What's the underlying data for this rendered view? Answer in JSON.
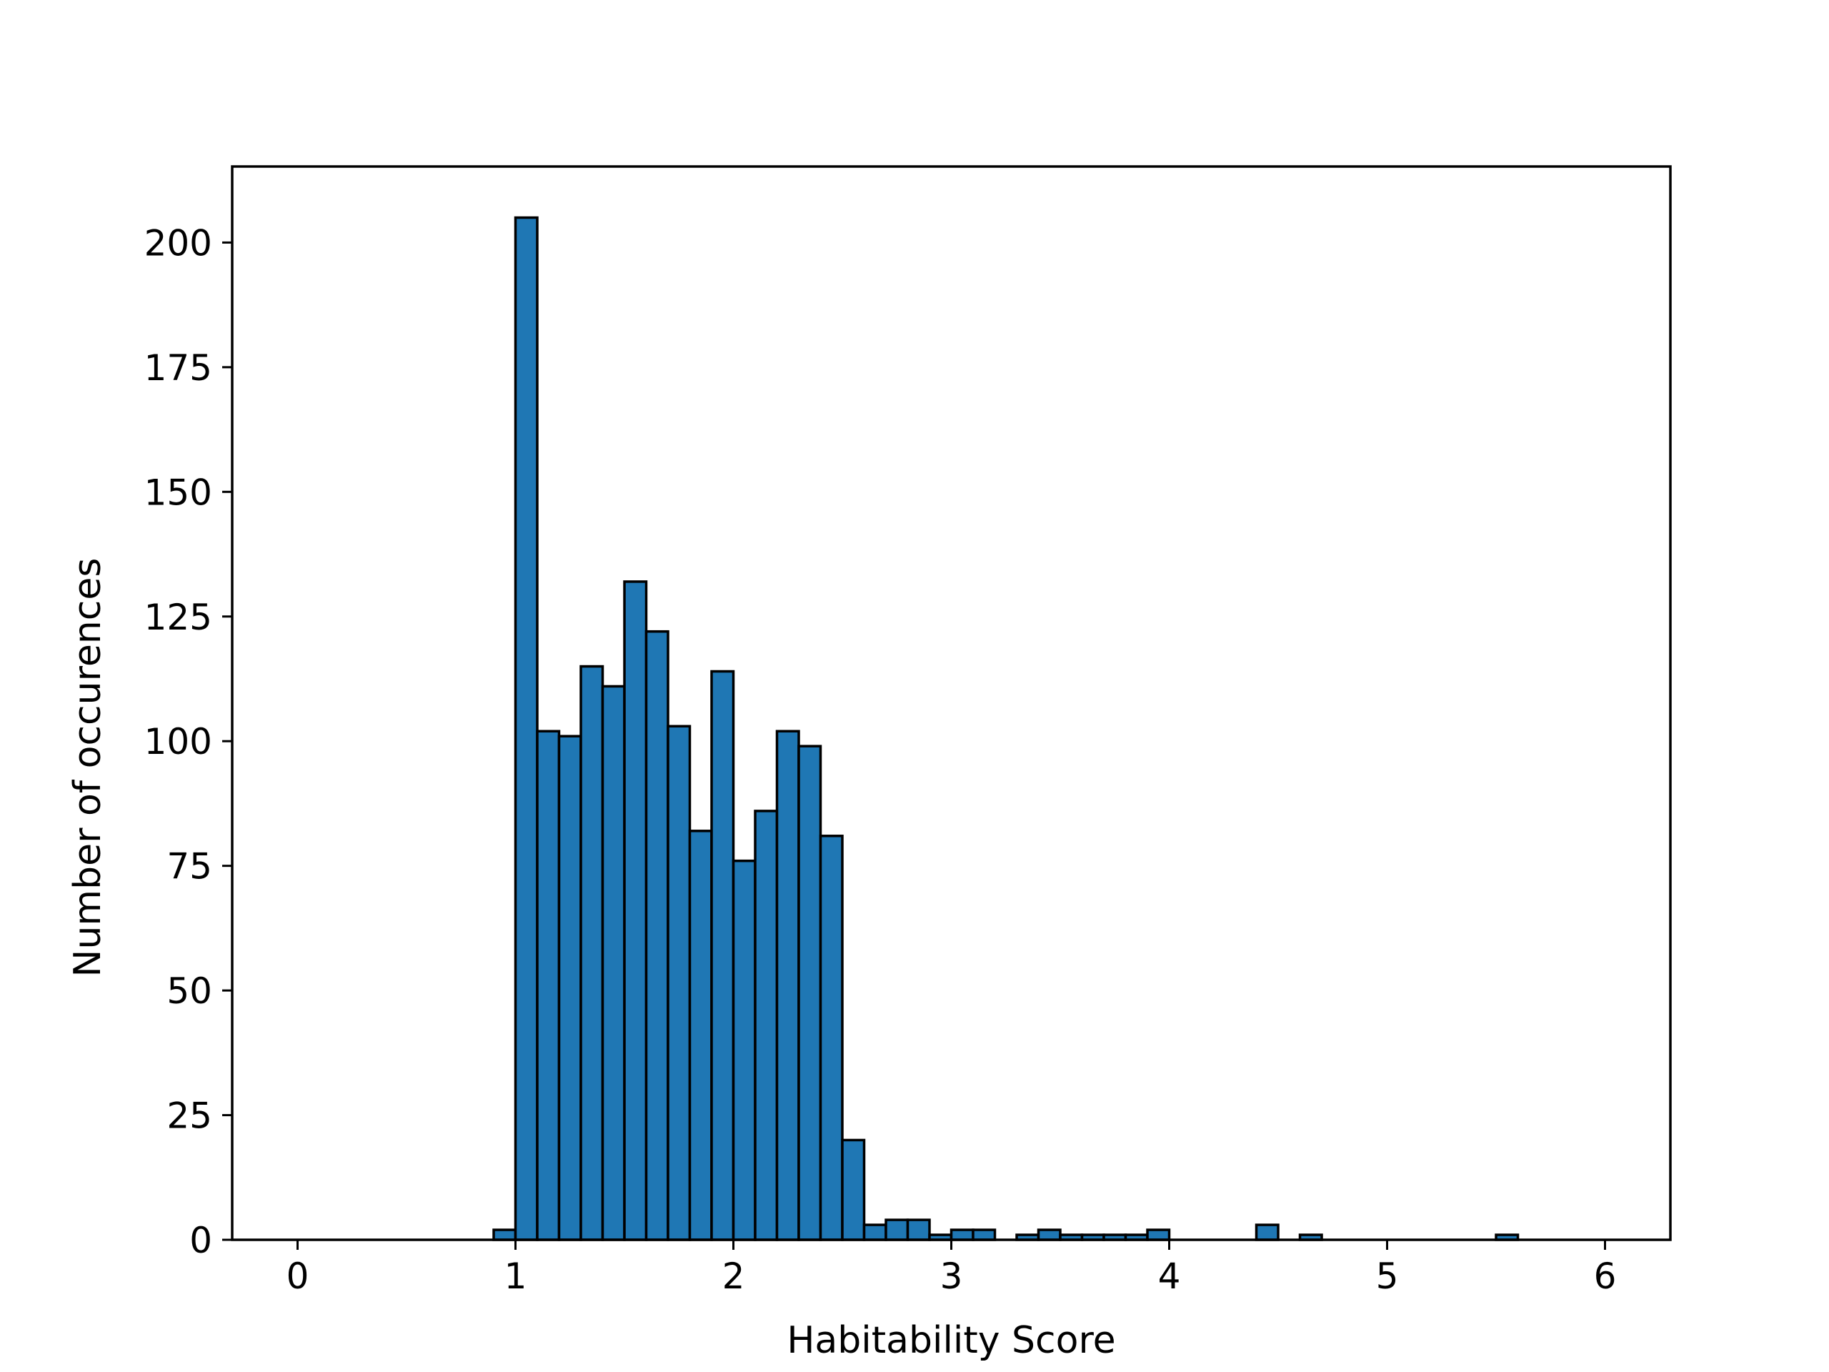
{
  "chart_data": {
    "type": "bar",
    "subtype": "histogram",
    "title": "",
    "xlabel": "Habitability Score",
    "ylabel": "Number of occurences",
    "xlim": [
      -0.3,
      6.3
    ],
    "ylim": [
      0,
      215.25
    ],
    "xticks": [
      0,
      1,
      2,
      3,
      4,
      5,
      6
    ],
    "yticks": [
      0,
      25,
      50,
      75,
      100,
      125,
      150,
      175,
      200
    ],
    "grid": false,
    "legend": null,
    "bar_color": "#1f77b4",
    "edge_color": "#000000",
    "bin_start": 0,
    "bin_width": 0.1,
    "values": [
      0,
      0,
      0,
      0,
      0,
      0,
      0,
      0,
      0,
      2,
      205,
      102,
      101,
      115,
      111,
      132,
      122,
      103,
      82,
      114,
      76,
      86,
      102,
      99,
      81,
      20,
      3,
      4,
      4,
      1,
      2,
      2,
      0,
      1,
      2,
      1,
      1,
      1,
      1,
      2,
      0,
      0,
      0,
      0,
      3,
      0,
      1,
      0,
      0,
      0,
      0,
      0,
      0,
      0,
      0,
      1,
      0,
      0,
      0,
      0
    ]
  }
}
